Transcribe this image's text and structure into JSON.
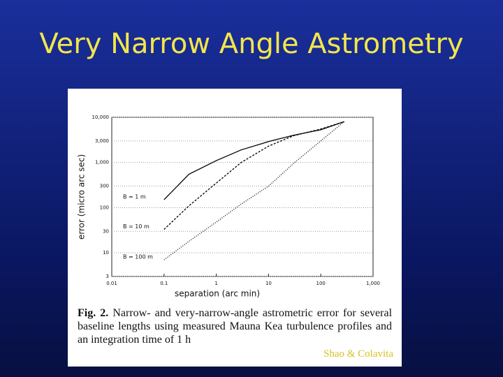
{
  "slide_title": "Very Narrow Angle Astrometry",
  "chart_data": {
    "type": "line",
    "xlabel": "separation (arc min)",
    "ylabel": "error (micro arc sec)",
    "log_x": true,
    "log_y": true,
    "grid": true,
    "xlim": [
      0.01,
      1000
    ],
    "ylim": [
      3,
      10000
    ],
    "xticks": [
      0.01,
      0.1,
      1,
      10,
      100,
      {
        "value": 1000,
        "label": "1,000"
      }
    ],
    "yticks": [
      3,
      10,
      30,
      100,
      300,
      {
        "value": 1000,
        "label": "1,000"
      },
      {
        "value": 3000,
        "label": "3,000"
      },
      {
        "value": 10000,
        "label": "10,000"
      }
    ],
    "x": [
      0.1,
      0.3,
      1,
      3,
      10,
      30,
      100,
      280
    ],
    "series": [
      {
        "name": "B = 1 m",
        "color": "#000000",
        "line_style": "solid",
        "values": [
          150,
          550,
          1100,
          1900,
          2900,
          4000,
          5300,
          8000
        ]
      },
      {
        "name": "B = 10 m",
        "color": "#000000",
        "line_style": "dashed",
        "values": [
          33,
          110,
          350,
          1000,
          2300,
          3900,
          5500,
          8000
        ]
      },
      {
        "name": "B = 100 m",
        "color": "#000000",
        "line_style": "dotted",
        "values": [
          7,
          18,
          48,
          120,
          300,
          950,
          3000,
          8000
        ]
      }
    ]
  },
  "caption_label": "Fig. 2.",
  "caption": "Narrow- and very-narrow-angle astrometric error for several baseline lengths using measured Mauna Kea turbulence profiles and an integration time of 1 h",
  "credit": "Shao & Colavita"
}
